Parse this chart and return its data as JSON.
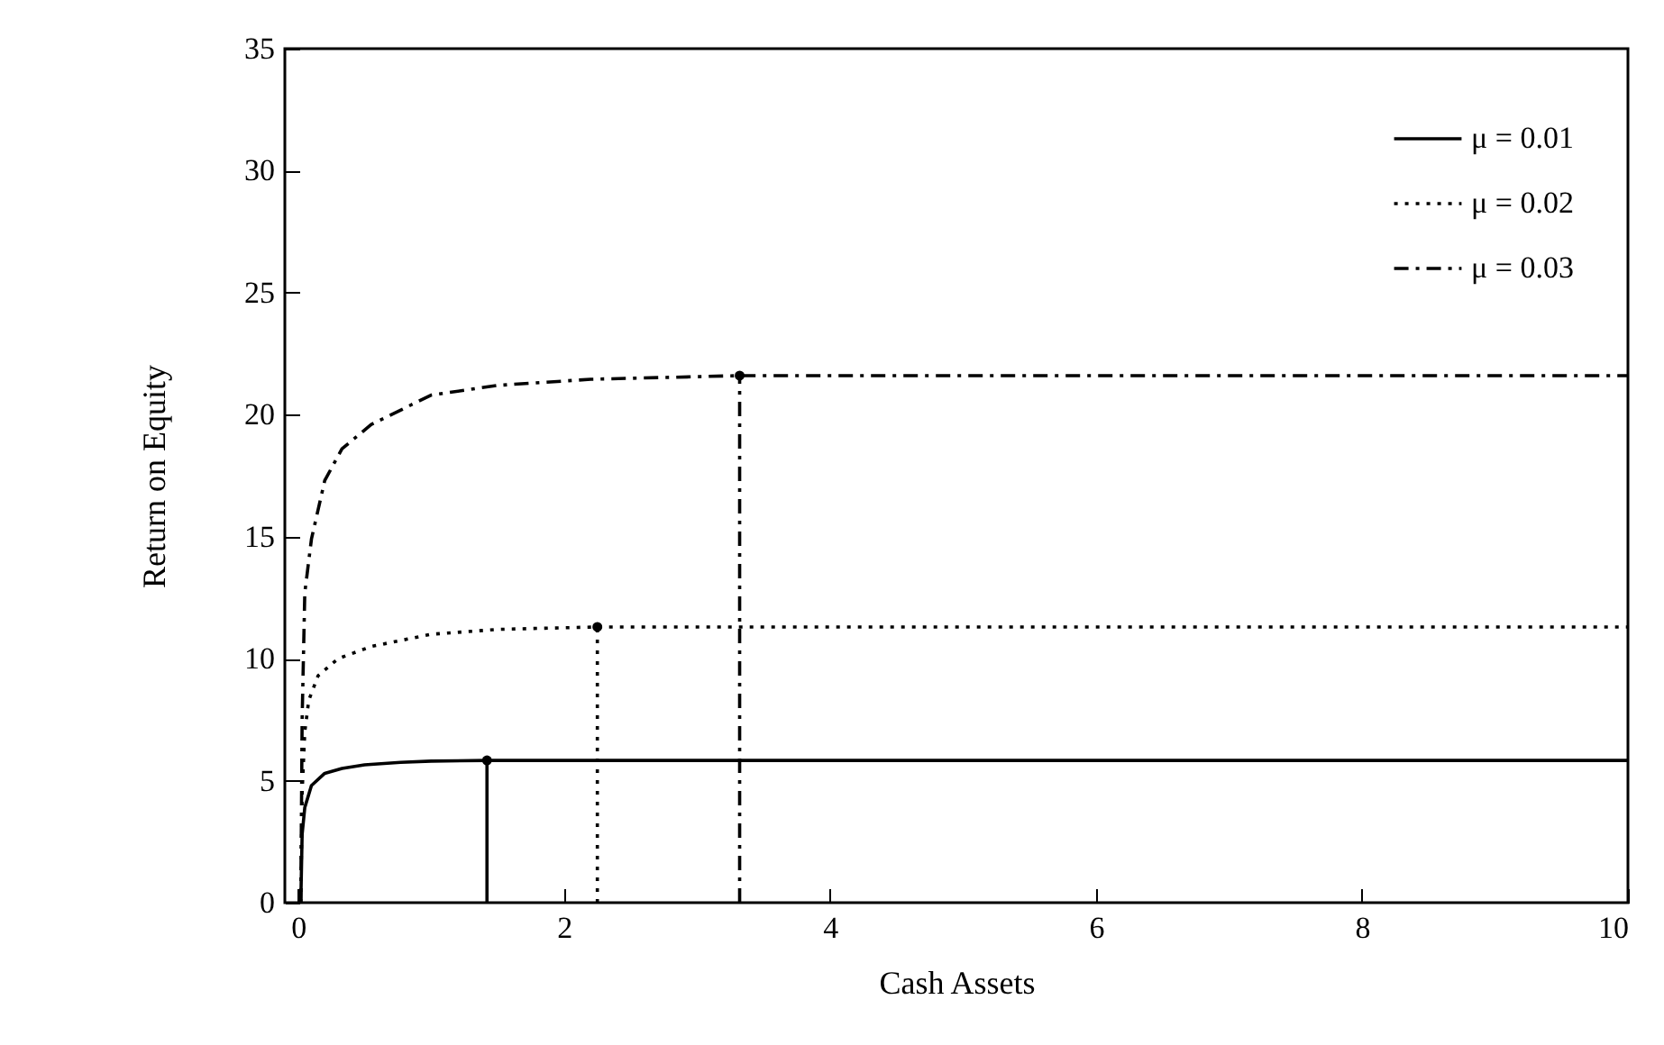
{
  "chart_data": {
    "type": "line",
    "xlabel": "Cash Assets",
    "ylabel": "Return on Equity",
    "xlim": [
      -0.1,
      10
    ],
    "ylim": [
      0,
      35
    ],
    "xticks": [
      0,
      2,
      4,
      6,
      8,
      10
    ],
    "yticks": [
      0,
      5,
      10,
      15,
      20,
      25,
      30,
      35
    ],
    "grid": false,
    "legend": "top right",
    "marker": "none",
    "series": [
      {
        "name": "μ = 0.01",
        "color": "#000000",
        "line_style": "solid",
        "x": [
          0.02,
          0.03,
          0.05,
          0.1,
          0.2,
          0.33,
          0.5,
          0.77,
          1.0,
          1.42,
          10
        ],
        "values": [
          0,
          2.8,
          3.9,
          4.8,
          5.3,
          5.5,
          5.65,
          5.75,
          5.8,
          5.83,
          5.83
        ]
      },
      {
        "name": "μ = 0.02",
        "color": "#000000",
        "line_style": "dotted",
        "x": [
          0.02,
          0.03,
          0.05,
          0.08,
          0.15,
          0.3,
          0.55,
          1.0,
          1.5,
          2.25,
          10
        ],
        "values": [
          0,
          4.5,
          7.0,
          8.3,
          9.3,
          10.0,
          10.5,
          11.0,
          11.2,
          11.3,
          11.3
        ]
      },
      {
        "name": "μ = 0.03",
        "color": "#000000",
        "line_style": "dashdot",
        "x": [
          0.02,
          0.03,
          0.05,
          0.1,
          0.2,
          0.33,
          0.55,
          1.0,
          1.5,
          2.2,
          3.32,
          10
        ],
        "values": [
          0,
          7.5,
          12.7,
          14.9,
          17.3,
          18.6,
          19.6,
          20.8,
          21.2,
          21.45,
          21.6,
          21.6
        ]
      },
      {
        "color": "#000000",
        "line_style": "solid",
        "x": [
          1.42,
          1.42
        ],
        "values": [
          0,
          5.83
        ]
      },
      {
        "color": "#000000",
        "line_style": "dotted",
        "x": [
          2.25,
          2.25
        ],
        "values": [
          0,
          11.3
        ]
      },
      {
        "color": "#000000",
        "line_style": "dashdot",
        "x": [
          3.32,
          3.32
        ],
        "values": [
          0,
          21.6
        ]
      },
      {
        "type": "scatter",
        "marker": "circle",
        "color": "#000000",
        "x": [
          1.42,
          2.25,
          3.32
        ],
        "values": [
          5.83,
          11.3,
          21.6
        ]
      }
    ]
  }
}
